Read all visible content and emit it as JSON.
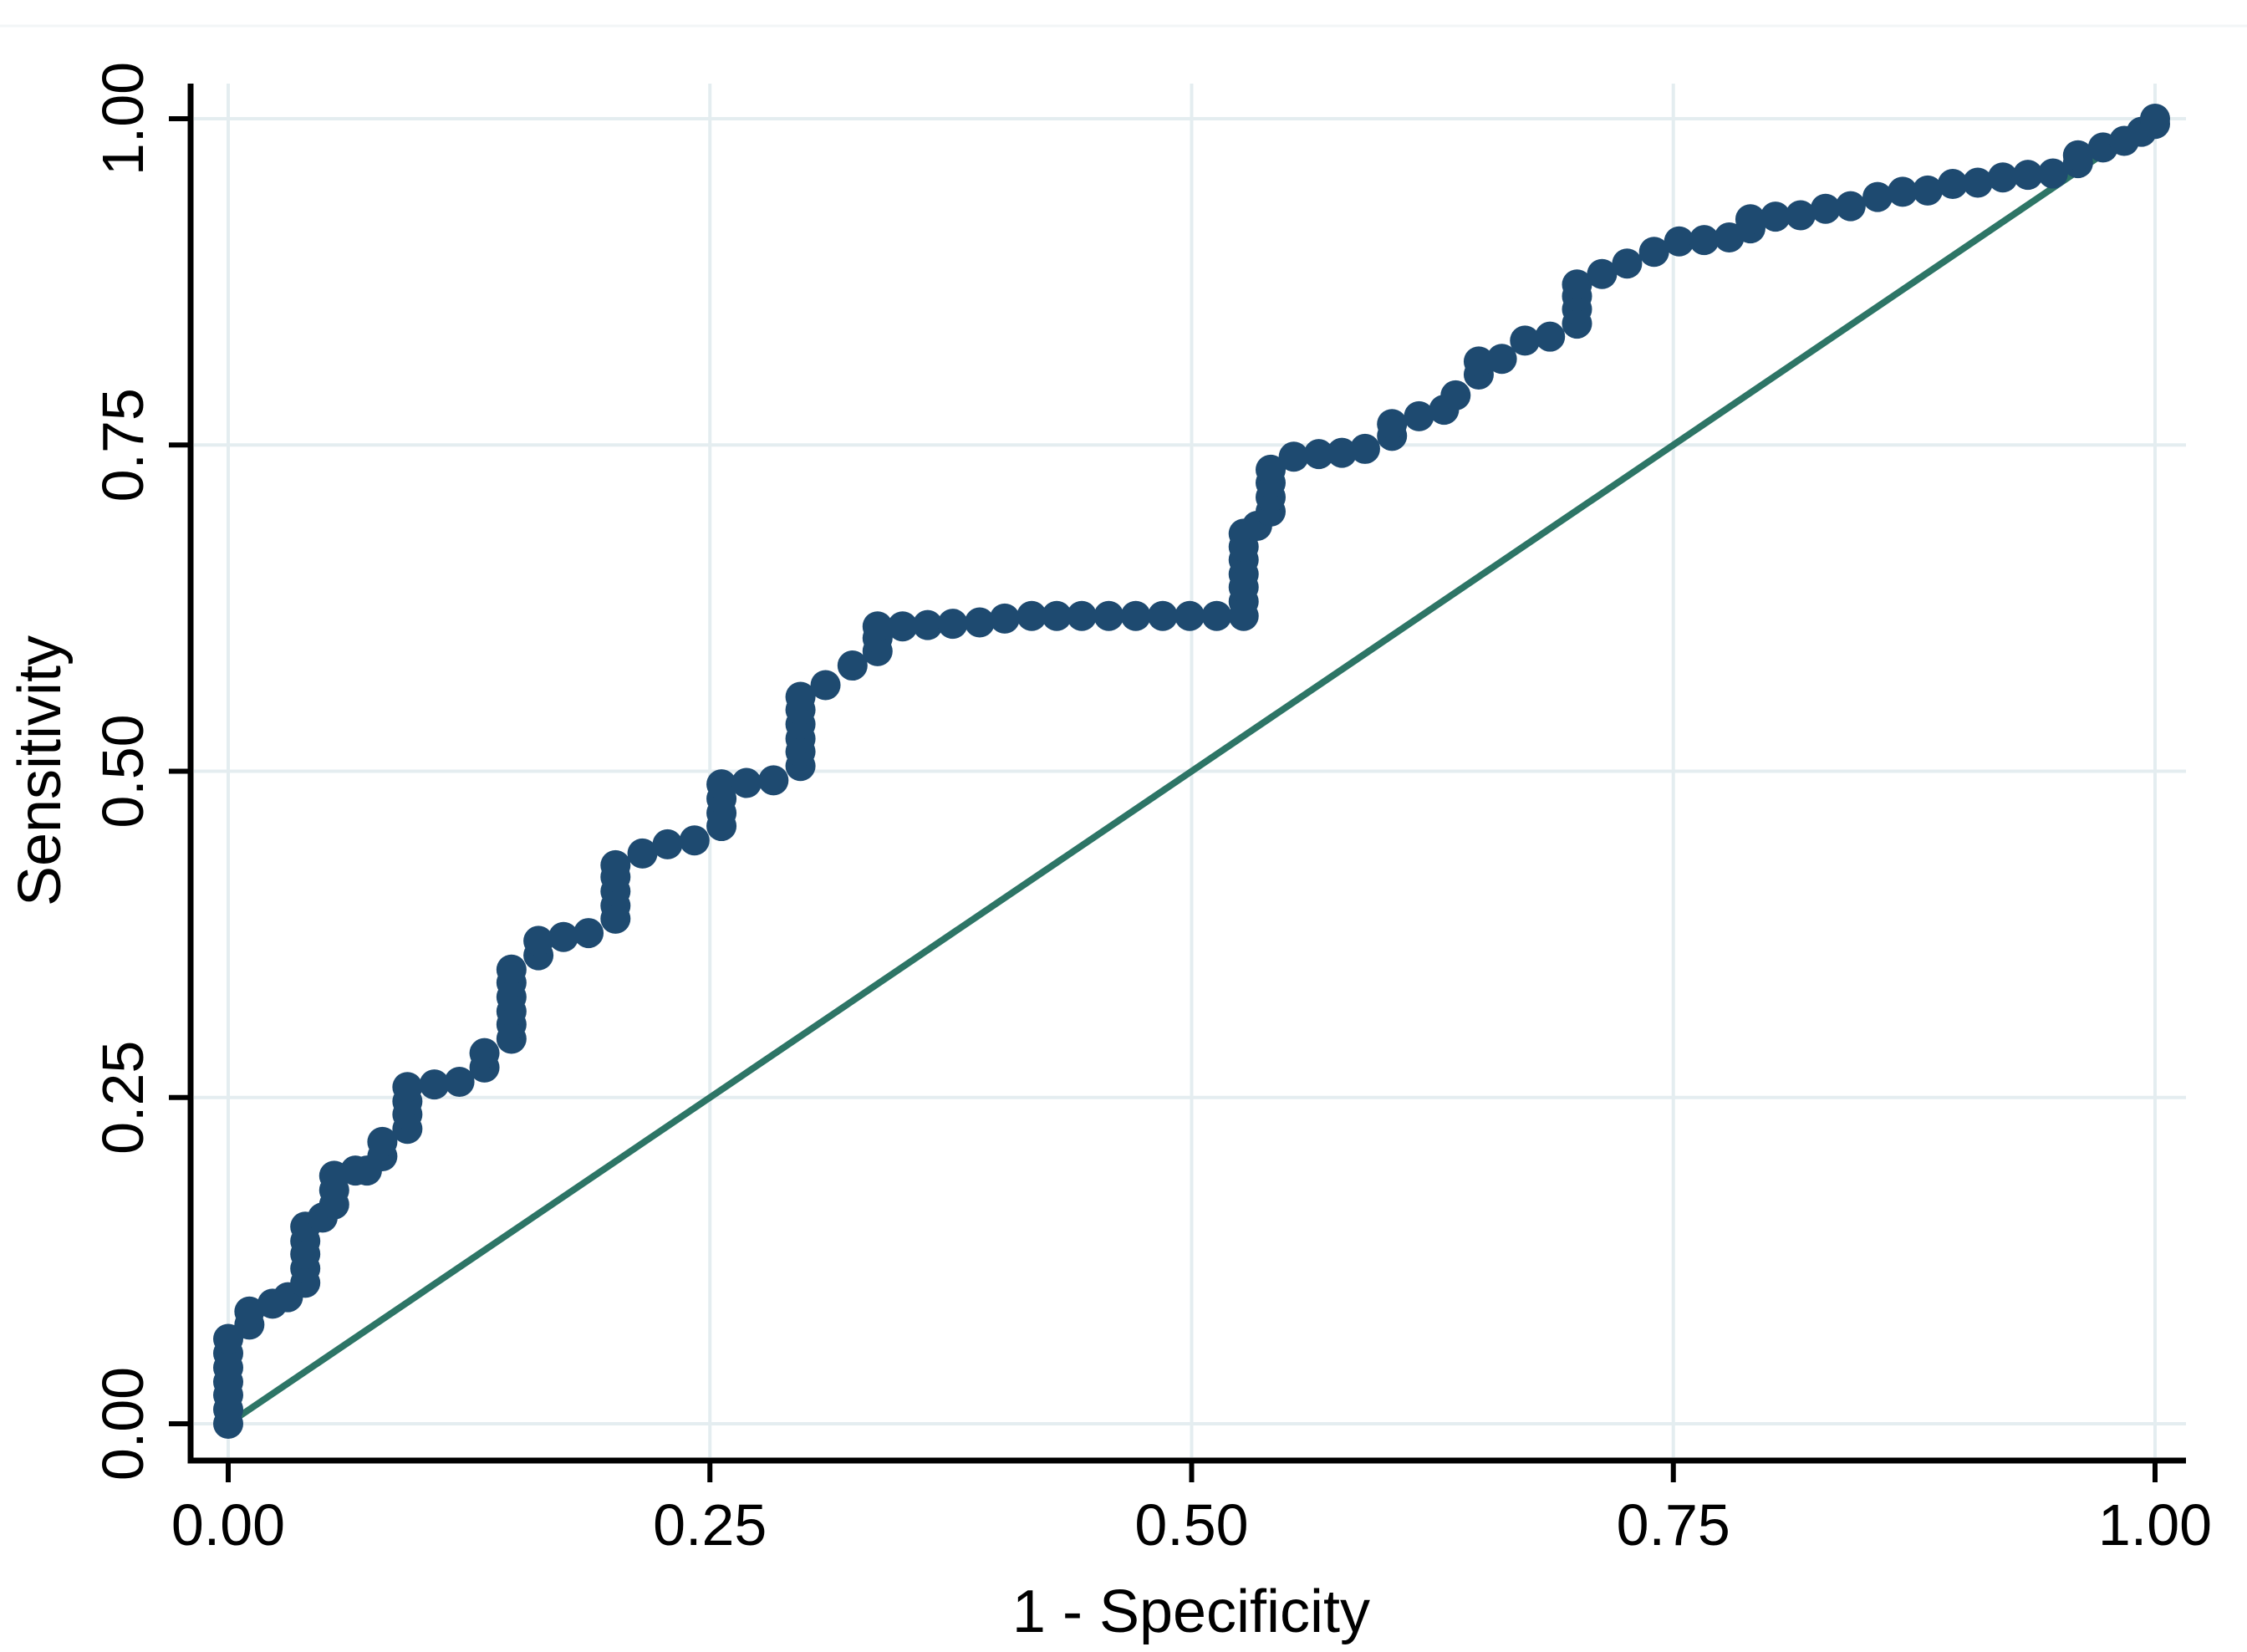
{
  "chart_data": {
    "type": "scatter",
    "title": "",
    "xlabel": "1 - Specificity",
    "ylabel": "Sensitivity",
    "xlim": [
      0,
      1
    ],
    "ylim": [
      0,
      1
    ],
    "grid": true,
    "legend": "none",
    "x_ticks": [
      {
        "v": 0.0,
        "label": "0.00"
      },
      {
        "v": 0.25,
        "label": "0.25"
      },
      {
        "v": 0.5,
        "label": "0.50"
      },
      {
        "v": 0.75,
        "label": "0.75"
      },
      {
        "v": 1.0,
        "label": "1.00"
      }
    ],
    "y_ticks": [
      {
        "v": 0.0,
        "label": "0.00"
      },
      {
        "v": 0.25,
        "label": "0.25"
      },
      {
        "v": 0.5,
        "label": "0.50"
      },
      {
        "v": 0.75,
        "label": "0.75"
      },
      {
        "v": 1.0,
        "label": "1.00"
      }
    ],
    "series": [
      {
        "name": "ROC curve points",
        "kind": "markers",
        "marker": "circle",
        "color": "#1e4a70",
        "points": [
          [
            0.0,
            0.0
          ],
          [
            0.0,
            0.011
          ],
          [
            0.0,
            0.022
          ],
          [
            0.0,
            0.032
          ],
          [
            0.0,
            0.043
          ],
          [
            0.0,
            0.054
          ],
          [
            0.0,
            0.065
          ],
          [
            0.011,
            0.076
          ],
          [
            0.011,
            0.086
          ],
          [
            0.023,
            0.092
          ],
          [
            0.031,
            0.097
          ],
          [
            0.04,
            0.108
          ],
          [
            0.04,
            0.119
          ],
          [
            0.04,
            0.13
          ],
          [
            0.04,
            0.14
          ],
          [
            0.04,
            0.151
          ],
          [
            0.049,
            0.158
          ],
          [
            0.055,
            0.168
          ],
          [
            0.055,
            0.179
          ],
          [
            0.055,
            0.19
          ],
          [
            0.066,
            0.194
          ],
          [
            0.072,
            0.194
          ],
          [
            0.08,
            0.205
          ],
          [
            0.08,
            0.216
          ],
          [
            0.093,
            0.226
          ],
          [
            0.093,
            0.237
          ],
          [
            0.093,
            0.247
          ],
          [
            0.093,
            0.258
          ],
          [
            0.107,
            0.26
          ],
          [
            0.12,
            0.262
          ],
          [
            0.133,
            0.273
          ],
          [
            0.133,
            0.284
          ],
          [
            0.147,
            0.295
          ],
          [
            0.147,
            0.306
          ],
          [
            0.147,
            0.316
          ],
          [
            0.147,
            0.327
          ],
          [
            0.147,
            0.338
          ],
          [
            0.147,
            0.348
          ],
          [
            0.161,
            0.359
          ],
          [
            0.161,
            0.37
          ],
          [
            0.174,
            0.373
          ],
          [
            0.187,
            0.376
          ],
          [
            0.201,
            0.387
          ],
          [
            0.201,
            0.397
          ],
          [
            0.201,
            0.408
          ],
          [
            0.201,
            0.419
          ],
          [
            0.201,
            0.428
          ],
          [
            0.215,
            0.437
          ],
          [
            0.228,
            0.444
          ],
          [
            0.242,
            0.447
          ],
          [
            0.256,
            0.458
          ],
          [
            0.256,
            0.468
          ],
          [
            0.256,
            0.479
          ],
          [
            0.256,
            0.49
          ],
          [
            0.269,
            0.491
          ],
          [
            0.283,
            0.493
          ],
          [
            0.297,
            0.504
          ],
          [
            0.297,
            0.515
          ],
          [
            0.297,
            0.525
          ],
          [
            0.297,
            0.536
          ],
          [
            0.297,
            0.547
          ],
          [
            0.297,
            0.557
          ],
          [
            0.31,
            0.566
          ],
          [
            0.324,
            0.581
          ],
          [
            0.337,
            0.592
          ],
          [
            0.337,
            0.602
          ],
          [
            0.337,
            0.611
          ],
          [
            0.35,
            0.611
          ],
          [
            0.363,
            0.612
          ],
          [
            0.376,
            0.613
          ],
          [
            0.39,
            0.614
          ],
          [
            0.403,
            0.617
          ],
          [
            0.417,
            0.619
          ],
          [
            0.43,
            0.619
          ],
          [
            0.443,
            0.619
          ],
          [
            0.457,
            0.619
          ],
          [
            0.471,
            0.619
          ],
          [
            0.485,
            0.619
          ],
          [
            0.499,
            0.619
          ],
          [
            0.513,
            0.619
          ],
          [
            0.527,
            0.619
          ],
          [
            0.527,
            0.63
          ],
          [
            0.527,
            0.641
          ],
          [
            0.527,
            0.651
          ],
          [
            0.527,
            0.662
          ],
          [
            0.527,
            0.672
          ],
          [
            0.527,
            0.682
          ],
          [
            0.534,
            0.688
          ],
          [
            0.541,
            0.699
          ],
          [
            0.541,
            0.71
          ],
          [
            0.541,
            0.721
          ],
          [
            0.541,
            0.731
          ],
          [
            0.553,
            0.741
          ],
          [
            0.566,
            0.743
          ],
          [
            0.578,
            0.744
          ],
          [
            0.59,
            0.747
          ],
          [
            0.604,
            0.757
          ],
          [
            0.604,
            0.766
          ],
          [
            0.618,
            0.772
          ],
          [
            0.631,
            0.777
          ],
          [
            0.637,
            0.788
          ],
          [
            0.649,
            0.804
          ],
          [
            0.649,
            0.814
          ],
          [
            0.661,
            0.816
          ],
          [
            0.673,
            0.83
          ],
          [
            0.686,
            0.833
          ],
          [
            0.7,
            0.843
          ],
          [
            0.7,
            0.854
          ],
          [
            0.7,
            0.864
          ],
          [
            0.7,
            0.873
          ],
          [
            0.713,
            0.881
          ],
          [
            0.726,
            0.889
          ],
          [
            0.74,
            0.898
          ],
          [
            0.753,
            0.906
          ],
          [
            0.766,
            0.907
          ],
          [
            0.779,
            0.909
          ],
          [
            0.79,
            0.916
          ],
          [
            0.79,
            0.923
          ],
          [
            0.803,
            0.925
          ],
          [
            0.816,
            0.926
          ],
          [
            0.829,
            0.931
          ],
          [
            0.842,
            0.933
          ],
          [
            0.856,
            0.94
          ],
          [
            0.869,
            0.944
          ],
          [
            0.882,
            0.945
          ],
          [
            0.895,
            0.95
          ],
          [
            0.908,
            0.951
          ],
          [
            0.921,
            0.955
          ],
          [
            0.934,
            0.957
          ],
          [
            0.947,
            0.958
          ],
          [
            0.96,
            0.966
          ],
          [
            0.96,
            0.972
          ],
          [
            0.973,
            0.978
          ],
          [
            0.984,
            0.983
          ],
          [
            0.993,
            0.99
          ],
          [
            1.0,
            0.996
          ],
          [
            1.0,
            1.0
          ]
        ]
      },
      {
        "name": "Reference (chance) line",
        "kind": "line",
        "color": "#2d7566",
        "points": [
          [
            0,
            0
          ],
          [
            1,
            1
          ]
        ]
      }
    ]
  },
  "colors": {
    "marker": "#1e4a70",
    "reference_line": "#2d7566",
    "gridline": "#e4edf0",
    "axis": "#000000",
    "background": "#ffffff",
    "region_edge": "#f2f6f7"
  }
}
